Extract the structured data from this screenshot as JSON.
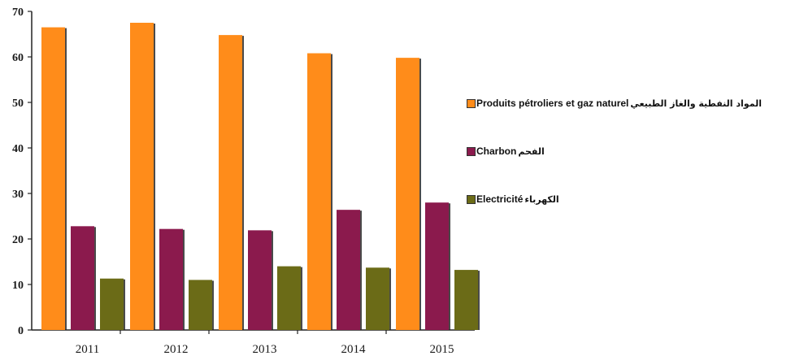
{
  "chart_data": {
    "type": "bar",
    "categories": [
      "2011",
      "2012",
      "2013",
      "2014",
      "2015"
    ],
    "series": [
      {
        "name": "Produits pétroliers et gaz naturel",
        "name_ar": "المواد النفطية والغاز الطبيعي",
        "color": "#ff8c1a",
        "values": [
          66.5,
          67.5,
          64.8,
          60.8,
          59.8
        ]
      },
      {
        "name": "Charbon",
        "name_ar": "الفحم",
        "color": "#8b1a4d",
        "values": [
          22.8,
          22.2,
          21.9,
          26.4,
          28.0
        ]
      },
      {
        "name": "Electricité",
        "name_ar": "الكهرباء",
        "color": "#6b6b17",
        "values": [
          11.3,
          11.0,
          14.0,
          13.7,
          13.2
        ]
      }
    ],
    "title": "",
    "xlabel": "",
    "ylabel": "",
    "ylim": [
      0,
      70
    ],
    "yticks": [
      0,
      10,
      20,
      30,
      40,
      50,
      60,
      70
    ],
    "grid": false,
    "legend_position": "right"
  }
}
